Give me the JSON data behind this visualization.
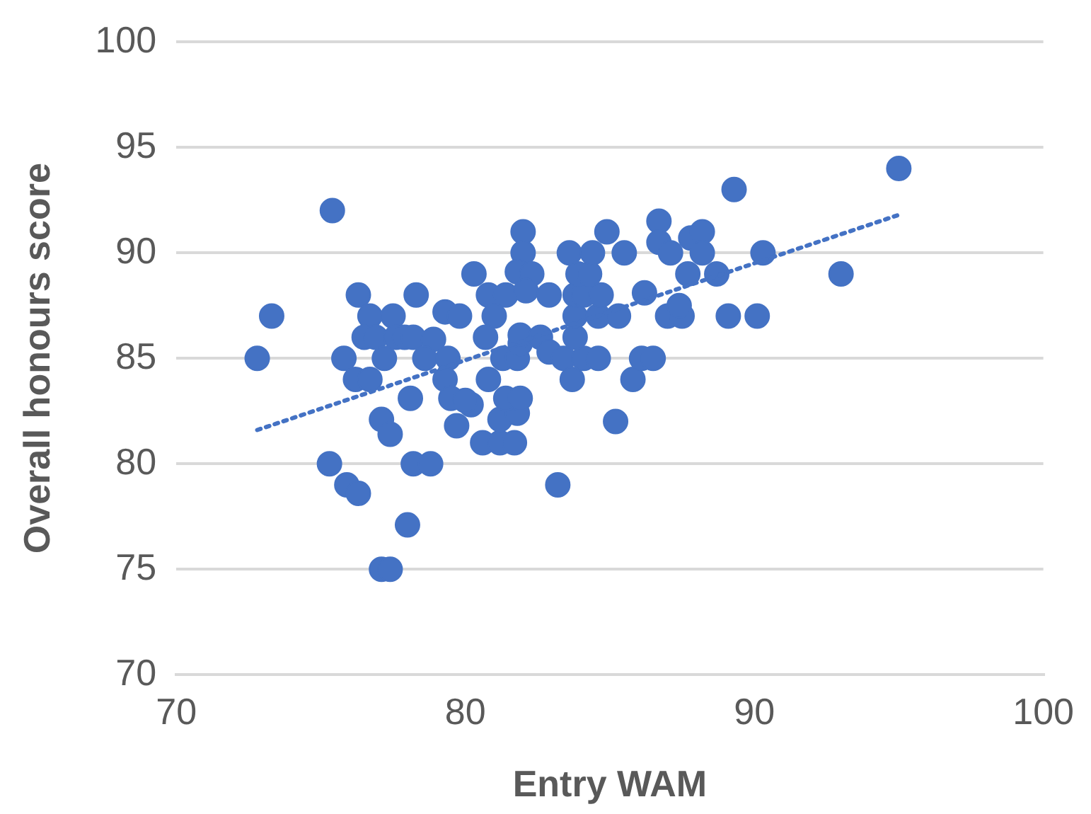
{
  "chart_data": {
    "type": "scatter",
    "xlabel": "Entry WAM",
    "ylabel": "Overall honours score",
    "xlim": [
      70,
      100
    ],
    "xticks": [
      70,
      80,
      90,
      100
    ],
    "ylim": [
      70,
      100
    ],
    "yticks": [
      70,
      75,
      80,
      85,
      90,
      95,
      100
    ],
    "grid": "y",
    "legend": false,
    "marker": "circle",
    "series": [
      {
        "type": "scatter",
        "color": "#4472c4",
        "x": [
          72.8,
          73.3,
          75.4,
          75.3,
          75.8,
          75.9,
          76.3,
          76.3,
          76.2,
          76.7,
          76.7,
          76.5,
          76.9,
          77.2,
          77.1,
          77.4,
          77.1,
          77.4,
          77.5,
          77.6,
          77.9,
          78.2,
          78,
          78.1,
          78.2,
          78.8,
          78.3,
          78.9,
          78.6,
          79.4,
          79.3,
          79.8,
          79.3,
          79.5,
          80.2,
          79.7,
          80.3,
          80.8,
          81.4,
          81,
          80.7,
          80.8,
          80,
          80.6,
          81.2,
          81.7,
          81.2,
          81.8,
          81.4,
          81.9,
          81.3,
          81.8,
          81.9,
          81.9,
          82.6,
          82,
          82,
          81.8,
          82.3,
          82.1,
          82.9,
          82.9,
          83.4,
          84.1,
          84.6,
          83.7,
          83.8,
          83.8,
          84.6,
          85.3,
          83.8,
          84.1,
          84.7,
          83.9,
          84.3,
          83.6,
          84.4,
          85.5,
          84.9,
          85.2,
          83.2,
          85.8,
          86.1,
          86.5,
          86.2,
          86.7,
          86.7,
          87.1,
          87,
          87.5,
          87.4,
          87.8,
          88.2,
          88.2,
          87.7,
          88.7,
          89.3,
          89.1,
          90.1,
          90.3,
          93,
          95
        ],
        "values": [
          85,
          87,
          92,
          80,
          85,
          79,
          78.6,
          88,
          84,
          84,
          87,
          86,
          86,
          85,
          82.1,
          81.4,
          75,
          75,
          87,
          86,
          86,
          86,
          77.1,
          83.1,
          80,
          80,
          88,
          85.9,
          85,
          85,
          87.2,
          87,
          84,
          83.1,
          82.8,
          81.8,
          89,
          88,
          88,
          87,
          86,
          84,
          83,
          81,
          81,
          81,
          82.1,
          82.4,
          83.1,
          83.1,
          85,
          85,
          85.7,
          86.1,
          86,
          91,
          90,
          89.1,
          89,
          88.2,
          88,
          85.3,
          85,
          85,
          85,
          84,
          86,
          87,
          87,
          87,
          88,
          88,
          88,
          89,
          89,
          90,
          90,
          90,
          91,
          82,
          79,
          84,
          85,
          85,
          88.1,
          91.5,
          90.5,
          90,
          87,
          87,
          87.5,
          90.7,
          91,
          90,
          89,
          89,
          93,
          87,
          87,
          90,
          89,
          94
        ]
      },
      {
        "type": "line",
        "color": "#4472c4",
        "line_style": "dotted",
        "marker": "none",
        "x": [
          72.8,
          95
        ],
        "values": [
          81.6,
          91.8
        ]
      }
    ]
  }
}
